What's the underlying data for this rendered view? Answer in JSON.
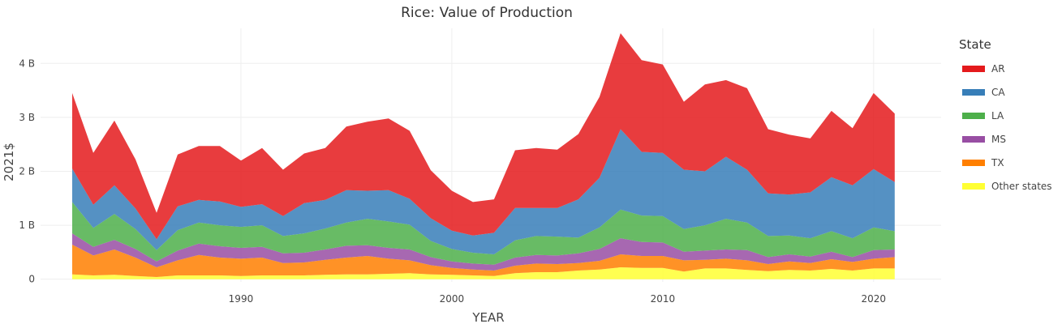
{
  "chart_data": {
    "type": "area",
    "title": "Rice: Value of Production",
    "xlabel": "YEAR",
    "ylabel": "2021$",
    "legend_title": "State",
    "xlim": [
      1980.5,
      2023.2
    ],
    "ylim": [
      -0.05,
      4.65
    ],
    "x_ticks": [
      1990,
      2000,
      2010,
      2020
    ],
    "y_ticks": [
      0,
      1,
      2,
      3,
      4
    ],
    "y_tick_labels": [
      "0",
      "1 B",
      "2 B",
      "3 B",
      "4 B"
    ],
    "grid": true,
    "stacked": true,
    "legend_position": "right",
    "x": [
      1982,
      1983,
      1984,
      1985,
      1986,
      1987,
      1988,
      1989,
      1990,
      1991,
      1992,
      1993,
      1994,
      1995,
      1996,
      1997,
      1998,
      1999,
      2000,
      2001,
      2002,
      2003,
      2004,
      2005,
      2006,
      2007,
      2008,
      2009,
      2010,
      2011,
      2012,
      2013,
      2014,
      2015,
      2016,
      2017,
      2018,
      2019,
      2020,
      2021
    ],
    "series": [
      {
        "name": "Other states",
        "color": "#ffff33",
        "values": [
          0.09,
          0.07,
          0.08,
          0.06,
          0.04,
          0.07,
          0.07,
          0.07,
          0.06,
          0.07,
          0.07,
          0.07,
          0.08,
          0.09,
          0.09,
          0.1,
          0.11,
          0.09,
          0.08,
          0.07,
          0.06,
          0.11,
          0.13,
          0.13,
          0.16,
          0.18,
          0.22,
          0.21,
          0.21,
          0.14,
          0.2,
          0.2,
          0.17,
          0.15,
          0.17,
          0.16,
          0.19,
          0.16,
          0.2,
          0.2
        ]
      },
      {
        "name": "TX",
        "color": "#ff7f00",
        "values": [
          0.55,
          0.37,
          0.47,
          0.34,
          0.18,
          0.28,
          0.38,
          0.33,
          0.32,
          0.33,
          0.23,
          0.24,
          0.28,
          0.31,
          0.34,
          0.28,
          0.24,
          0.17,
          0.13,
          0.11,
          0.1,
          0.14,
          0.16,
          0.15,
          0.14,
          0.16,
          0.24,
          0.22,
          0.22,
          0.21,
          0.16,
          0.18,
          0.18,
          0.13,
          0.16,
          0.14,
          0.18,
          0.16,
          0.18,
          0.21
        ]
      },
      {
        "name": "MS",
        "color": "#984ea3",
        "values": [
          0.21,
          0.16,
          0.18,
          0.16,
          0.11,
          0.18,
          0.21,
          0.21,
          0.2,
          0.2,
          0.18,
          0.18,
          0.19,
          0.22,
          0.2,
          0.2,
          0.2,
          0.15,
          0.12,
          0.11,
          0.11,
          0.15,
          0.16,
          0.16,
          0.18,
          0.22,
          0.3,
          0.26,
          0.25,
          0.16,
          0.17,
          0.17,
          0.19,
          0.13,
          0.13,
          0.12,
          0.14,
          0.09,
          0.16,
          0.14
        ]
      },
      {
        "name": "LA",
        "color": "#4daf4a",
        "values": [
          0.58,
          0.35,
          0.48,
          0.37,
          0.21,
          0.38,
          0.39,
          0.39,
          0.39,
          0.4,
          0.32,
          0.36,
          0.39,
          0.43,
          0.49,
          0.49,
          0.46,
          0.3,
          0.23,
          0.2,
          0.19,
          0.32,
          0.35,
          0.35,
          0.29,
          0.4,
          0.53,
          0.49,
          0.49,
          0.42,
          0.47,
          0.57,
          0.51,
          0.39,
          0.35,
          0.34,
          0.38,
          0.35,
          0.42,
          0.34
        ]
      },
      {
        "name": "CA",
        "color": "#377eb8",
        "values": [
          0.62,
          0.43,
          0.53,
          0.38,
          0.2,
          0.44,
          0.42,
          0.44,
          0.37,
          0.39,
          0.37,
          0.56,
          0.53,
          0.6,
          0.52,
          0.58,
          0.48,
          0.42,
          0.34,
          0.32,
          0.4,
          0.6,
          0.52,
          0.53,
          0.71,
          0.92,
          1.49,
          1.18,
          1.17,
          1.1,
          1.0,
          1.15,
          0.98,
          0.79,
          0.76,
          0.85,
          1.0,
          0.98,
          1.08,
          0.91
        ]
      },
      {
        "name": "AR",
        "color": "#e41a1c",
        "values": [
          1.4,
          0.96,
          1.2,
          0.91,
          0.49,
          0.96,
          1.0,
          1.03,
          0.86,
          1.04,
          0.86,
          0.92,
          0.96,
          1.18,
          1.28,
          1.33,
          1.26,
          0.89,
          0.74,
          0.62,
          0.62,
          1.07,
          1.11,
          1.08,
          1.21,
          1.5,
          1.78,
          1.7,
          1.64,
          1.26,
          1.61,
          1.42,
          1.51,
          1.19,
          1.11,
          1.0,
          1.23,
          1.06,
          1.41,
          1.27
        ]
      }
    ]
  }
}
